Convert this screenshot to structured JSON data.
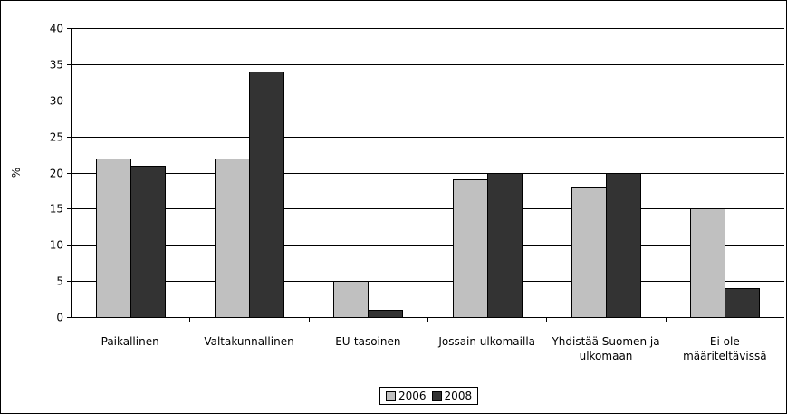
{
  "chart_data": {
    "type": "bar",
    "ylabel": "%",
    "ylim": [
      0,
      40
    ],
    "yticks": [
      "0",
      "5",
      "10",
      "15",
      "20",
      "25",
      "30",
      "35",
      "40"
    ],
    "categories": [
      [
        "Paikallinen"
      ],
      [
        "Valtakunnallinen"
      ],
      [
        "EU-tasoinen"
      ],
      [
        "Jossain ulkomailla"
      ],
      [
        "Yhdistää Suomen ja",
        "ulkomaan"
      ],
      [
        "Ei ole",
        "määriteltävissä"
      ]
    ],
    "series": [
      {
        "name": "2006",
        "color": "#c0c0c0",
        "values": [
          22,
          22,
          5,
          19,
          18,
          15
        ]
      },
      {
        "name": "2008",
        "color": "#333333",
        "values": [
          21,
          34,
          1,
          20,
          20,
          4
        ]
      }
    ],
    "grid": true,
    "legend": "bottom"
  }
}
